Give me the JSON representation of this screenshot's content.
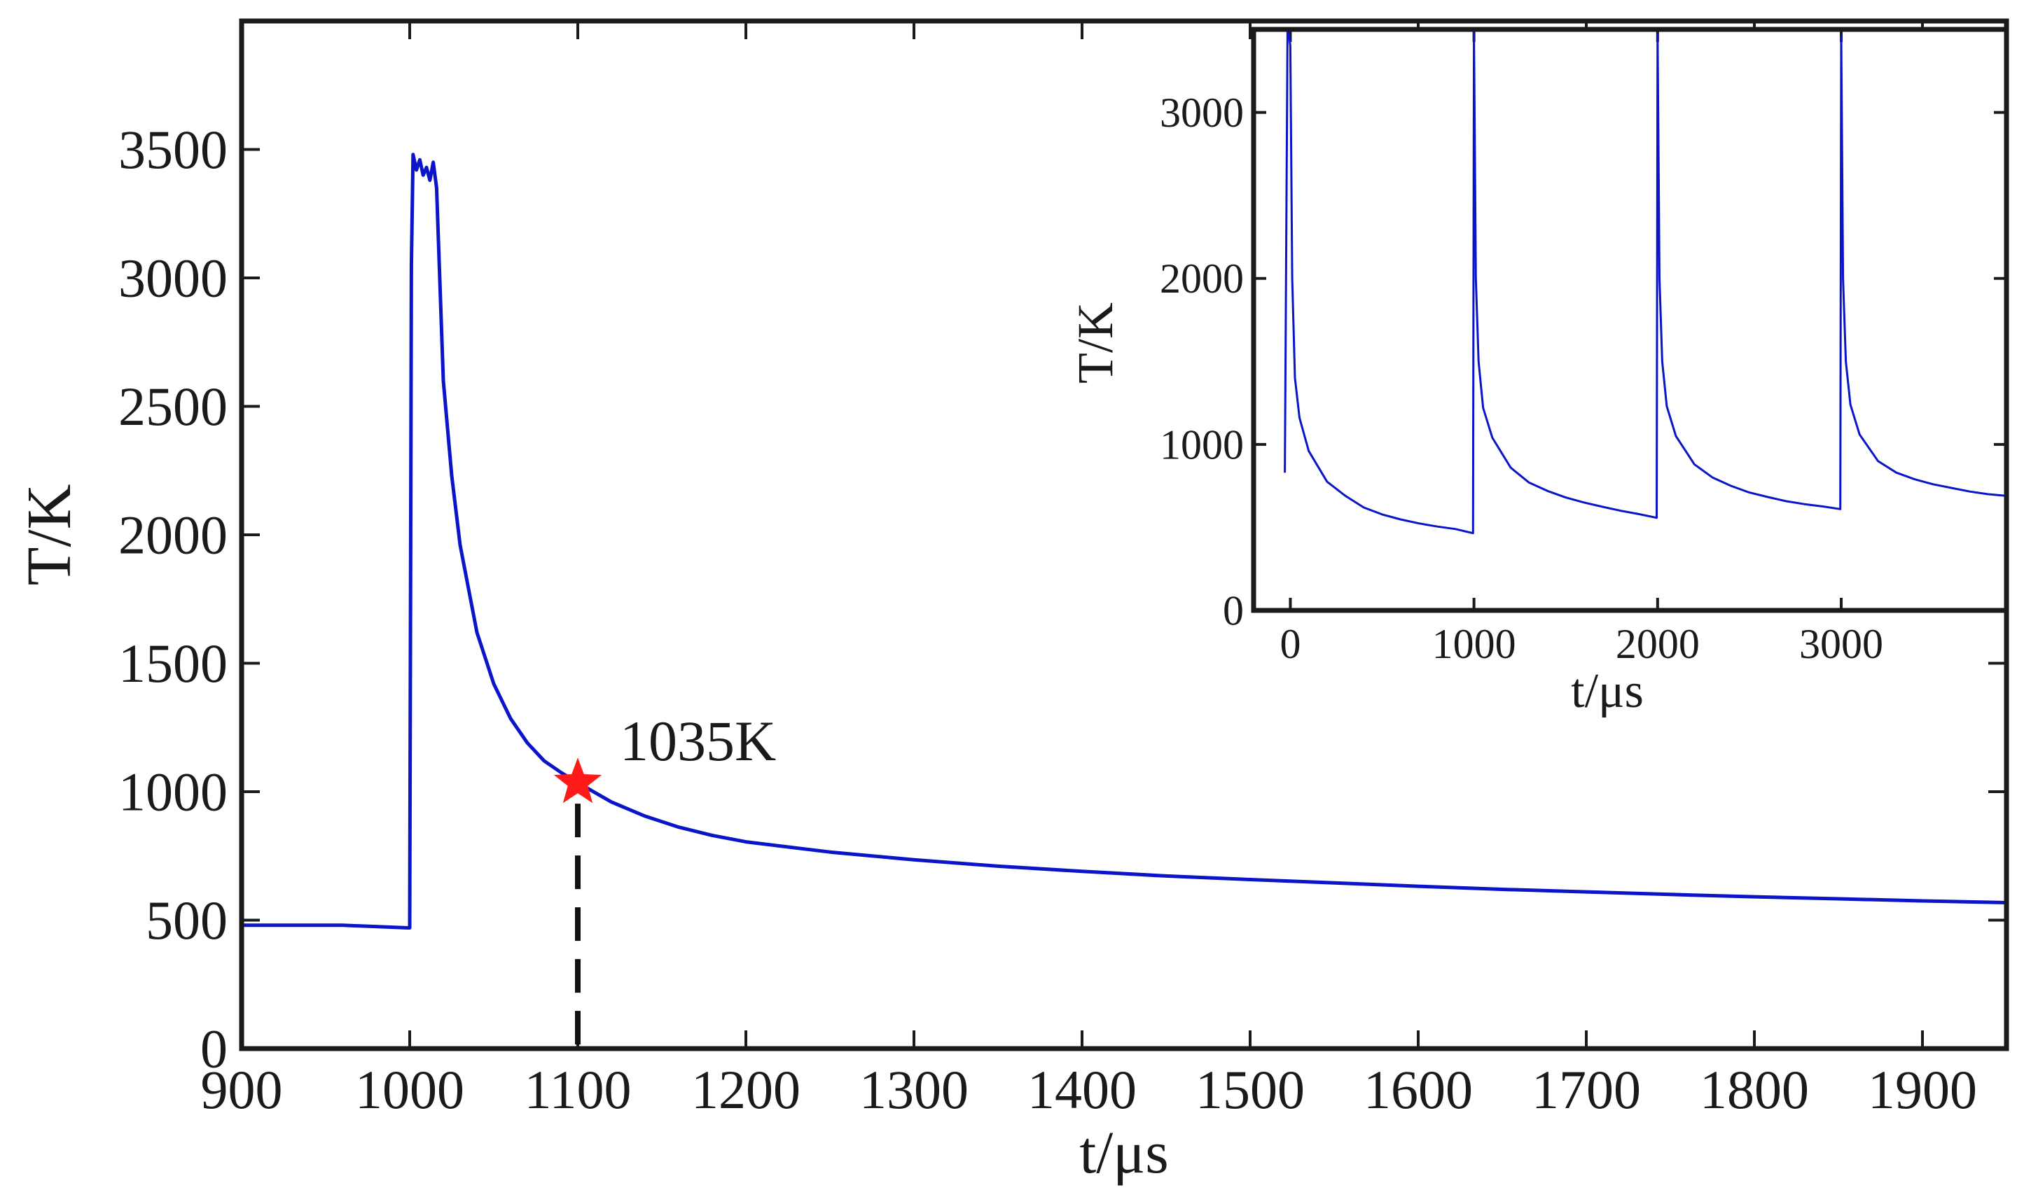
{
  "chart_data": [
    {
      "type": "line",
      "role": "main",
      "xlabel": "t/μs",
      "ylabel": "T/K",
      "xlim": [
        900,
        1950
      ],
      "ylim": [
        0,
        4000
      ],
      "xticks": [
        900,
        1000,
        1100,
        1200,
        1300,
        1400,
        1500,
        1600,
        1700,
        1800,
        1900
      ],
      "yticks": [
        0,
        500,
        1000,
        1500,
        2000,
        2500,
        3000,
        3500
      ],
      "line_color": "#0a14c8",
      "series": [
        {
          "name": "temperature",
          "x": [
            900,
            960,
            999,
            1000,
            1001,
            1002,
            1003,
            1004,
            1006,
            1008,
            1010,
            1012,
            1014,
            1016,
            1020,
            1025,
            1030,
            1040,
            1050,
            1060,
            1070,
            1080,
            1090,
            1100,
            1120,
            1140,
            1160,
            1180,
            1200,
            1250,
            1300,
            1350,
            1400,
            1450,
            1500,
            1550,
            1600,
            1650,
            1700,
            1750,
            1800,
            1850,
            1900,
            1950
          ],
          "y": [
            480,
            480,
            470,
            470,
            3050,
            3480,
            3450,
            3420,
            3460,
            3400,
            3430,
            3380,
            3450,
            3350,
            2600,
            2230,
            1960,
            1620,
            1420,
            1285,
            1190,
            1120,
            1075,
            1035,
            960,
            905,
            862,
            830,
            805,
            765,
            735,
            710,
            690,
            672,
            658,
            645,
            632,
            620,
            610,
            600,
            591,
            583,
            575,
            568
          ]
        }
      ],
      "annotations": [
        {
          "text": "1035K",
          "x": 1100,
          "y": 1035,
          "marker": "red-star",
          "marker_color": "#ff1a1a",
          "guide": "dashed-vertical"
        }
      ]
    },
    {
      "type": "line",
      "role": "inset",
      "xlabel": "t/μs",
      "ylabel": "T/K",
      "xlim": [
        -200,
        3900
      ],
      "ylim": [
        0,
        3500
      ],
      "xticks": [
        0,
        1000,
        2000,
        3000
      ],
      "yticks": [
        0,
        1000,
        2000,
        3000
      ],
      "line_color": "#0a14c8",
      "series": [
        {
          "name": "temperature",
          "x": [
            -30,
            -15,
            0,
            10,
            25,
            50,
            100,
            200,
            300,
            400,
            500,
            600,
            700,
            800,
            900,
            995,
            995,
            1000,
            1010,
            1025,
            1050,
            1100,
            1200,
            1300,
            1400,
            1500,
            1600,
            1700,
            1800,
            1900,
            1995,
            1995,
            2000,
            2010,
            2025,
            2050,
            2100,
            2200,
            2300,
            2400,
            2500,
            2600,
            2700,
            2800,
            2900,
            2995,
            2995,
            3000,
            3010,
            3025,
            3050,
            3100,
            3200,
            3300,
            3400,
            3500,
            3600,
            3700,
            3800,
            3900
          ],
          "y": [
            830,
            3550,
            3400,
            2000,
            1400,
            1160,
            960,
            775,
            690,
            620,
            578,
            548,
            524,
            505,
            490,
            465,
            465,
            3480,
            2000,
            1500,
            1220,
            1040,
            860,
            770,
            720,
            680,
            650,
            624,
            600,
            580,
            558,
            558,
            3470,
            2000,
            1500,
            1230,
            1050,
            880,
            800,
            750,
            710,
            683,
            658,
            640,
            626,
            610,
            610,
            3460,
            2000,
            1500,
            1240,
            1060,
            900,
            830,
            790,
            760,
            738,
            716,
            700,
            690
          ]
        }
      ]
    }
  ]
}
